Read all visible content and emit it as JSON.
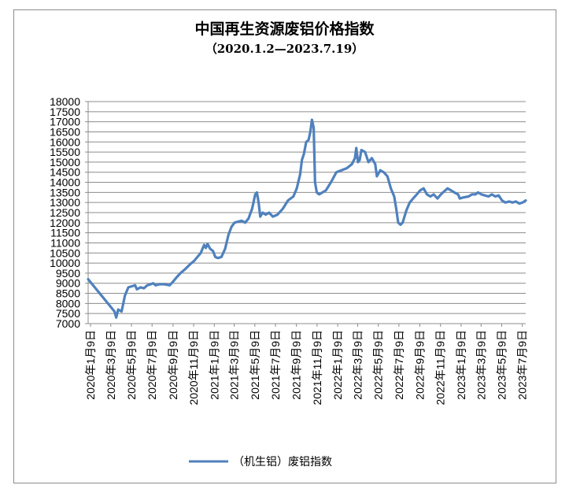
{
  "chart_data": {
    "type": "line",
    "title": "中国再生资源废铝价格指数",
    "subtitle": "（2020.1.2—2023.7.19）",
    "xlabel": "",
    "ylabel": "",
    "ylim": [
      7000,
      18000
    ],
    "ytick_step": 500,
    "grid": true,
    "legend": "bottom",
    "line_color": "#4f81bd",
    "x_tick_labels": [
      "2020年1月9日",
      "2020年3月9日",
      "2020年5月9日",
      "2020年7月9日",
      "2020年9月9日",
      "2020年11月9日",
      "2021年1月9日",
      "2021年3月9日",
      "2021年5月9日",
      "2021年7月9日",
      "2021年9月9日",
      "2021年11月9日",
      "2022年1月9日",
      "2022年3月9日",
      "2022年5月9日",
      "2022年7月9日",
      "2022年9月9日",
      "2022年11月9日",
      "2023年1月9日",
      "2023年3月9日",
      "2023年5月9日",
      "2023年7月9日"
    ],
    "series": [
      {
        "name": "（机生铝）废铝指数",
        "points": [
          [
            "2020-01-02",
            9200
          ],
          [
            "2020-03-20",
            7600
          ],
          [
            "2020-03-25",
            7300
          ],
          [
            "2020-03-31",
            7700
          ],
          [
            "2020-04-10",
            7600
          ],
          [
            "2020-04-20",
            8400
          ],
          [
            "2020-04-30",
            8800
          ],
          [
            "2020-05-10",
            8850
          ],
          [
            "2020-05-20",
            8900
          ],
          [
            "2020-05-25",
            8700
          ],
          [
            "2020-06-05",
            8800
          ],
          [
            "2020-06-15",
            8750
          ],
          [
            "2020-06-25",
            8900
          ],
          [
            "2020-07-05",
            8950
          ],
          [
            "2020-07-12",
            9000
          ],
          [
            "2020-07-20",
            8900
          ],
          [
            "2020-07-31",
            8950
          ],
          [
            "2020-08-15",
            8950
          ],
          [
            "2020-08-30",
            8900
          ],
          [
            "2020-09-10",
            9100
          ],
          [
            "2020-09-20",
            9300
          ],
          [
            "2020-10-01",
            9500
          ],
          [
            "2020-10-15",
            9700
          ],
          [
            "2020-10-30",
            9950
          ],
          [
            "2020-11-10",
            10100
          ],
          [
            "2020-11-20",
            10300
          ],
          [
            "2020-11-30",
            10500
          ],
          [
            "2020-12-05",
            10700
          ],
          [
            "2020-12-10",
            10900
          ],
          [
            "2020-12-15",
            10750
          ],
          [
            "2020-12-20",
            10950
          ],
          [
            "2020-12-28",
            10700
          ],
          [
            "2021-01-05",
            10600
          ],
          [
            "2021-01-12",
            10300
          ],
          [
            "2021-01-20",
            10250
          ],
          [
            "2021-01-30",
            10300
          ],
          [
            "2021-02-10",
            10700
          ],
          [
            "2021-02-20",
            11400
          ],
          [
            "2021-03-01",
            11800
          ],
          [
            "2021-03-10",
            12000
          ],
          [
            "2021-03-20",
            12050
          ],
          [
            "2021-03-31",
            12100
          ],
          [
            "2021-04-10",
            12000
          ],
          [
            "2021-04-20",
            12200
          ],
          [
            "2021-05-01",
            12700
          ],
          [
            "2021-05-10",
            13400
          ],
          [
            "2021-05-15",
            13500
          ],
          [
            "2021-05-20",
            13000
          ],
          [
            "2021-05-25",
            12300
          ],
          [
            "2021-06-01",
            12500
          ],
          [
            "2021-06-10",
            12400
          ],
          [
            "2021-06-20",
            12500
          ],
          [
            "2021-07-01",
            12300
          ],
          [
            "2021-07-15",
            12400
          ],
          [
            "2021-07-31",
            12700
          ],
          [
            "2021-08-15",
            13100
          ],
          [
            "2021-08-31",
            13300
          ],
          [
            "2021-09-10",
            13700
          ],
          [
            "2021-09-20",
            14400
          ],
          [
            "2021-09-25",
            15100
          ],
          [
            "2021-10-01",
            15400
          ],
          [
            "2021-10-08",
            16000
          ],
          [
            "2021-10-15",
            16100
          ],
          [
            "2021-10-20",
            16500
          ],
          [
            "2021-10-25",
            17100
          ],
          [
            "2021-10-30",
            16700
          ],
          [
            "2021-11-03",
            14000
          ],
          [
            "2021-11-08",
            13500
          ],
          [
            "2021-11-15",
            13400
          ],
          [
            "2021-11-25",
            13500
          ],
          [
            "2021-12-05",
            13600
          ],
          [
            "2021-12-20",
            14000
          ],
          [
            "2022-01-05",
            14500
          ],
          [
            "2022-01-20",
            14600
          ],
          [
            "2022-02-05",
            14700
          ],
          [
            "2022-02-20",
            14900
          ],
          [
            "2022-03-01",
            15200
          ],
          [
            "2022-03-05",
            15700
          ],
          [
            "2022-03-10",
            15000
          ],
          [
            "2022-03-15",
            15100
          ],
          [
            "2022-03-20",
            15600
          ],
          [
            "2022-03-31",
            15500
          ],
          [
            "2022-04-10",
            15000
          ],
          [
            "2022-04-20",
            15200
          ],
          [
            "2022-04-30",
            14900
          ],
          [
            "2022-05-05",
            14300
          ],
          [
            "2022-05-15",
            14600
          ],
          [
            "2022-05-25",
            14500
          ],
          [
            "2022-06-05",
            14300
          ],
          [
            "2022-06-15",
            13700
          ],
          [
            "2022-06-25",
            13300
          ],
          [
            "2022-07-01",
            12700
          ],
          [
            "2022-07-07",
            12000
          ],
          [
            "2022-07-14",
            11900
          ],
          [
            "2022-07-20",
            12000
          ],
          [
            "2022-07-31",
            12600
          ],
          [
            "2022-08-10",
            13000
          ],
          [
            "2022-08-20",
            13200
          ],
          [
            "2022-08-31",
            13400
          ],
          [
            "2022-09-10",
            13600
          ],
          [
            "2022-09-20",
            13700
          ],
          [
            "2022-09-30",
            13400
          ],
          [
            "2022-10-10",
            13300
          ],
          [
            "2022-10-20",
            13400
          ],
          [
            "2022-10-31",
            13200
          ],
          [
            "2022-11-10",
            13400
          ],
          [
            "2022-11-20",
            13550
          ],
          [
            "2022-11-30",
            13700
          ],
          [
            "2022-12-10",
            13600
          ],
          [
            "2022-12-20",
            13500
          ],
          [
            "2022-12-31",
            13400
          ],
          [
            "2023-01-05",
            13200
          ],
          [
            "2023-01-15",
            13250
          ],
          [
            "2023-01-31",
            13300
          ],
          [
            "2023-02-10",
            13400
          ],
          [
            "2023-02-20",
            13400
          ],
          [
            "2023-02-28",
            13500
          ],
          [
            "2023-03-10",
            13400
          ],
          [
            "2023-03-20",
            13350
          ],
          [
            "2023-03-31",
            13300
          ],
          [
            "2023-04-10",
            13400
          ],
          [
            "2023-04-20",
            13300
          ],
          [
            "2023-04-30",
            13350
          ],
          [
            "2023-05-10",
            13100
          ],
          [
            "2023-05-20",
            13000
          ],
          [
            "2023-05-31",
            13050
          ],
          [
            "2023-06-10",
            13000
          ],
          [
            "2023-06-20",
            13050
          ],
          [
            "2023-06-30",
            12950
          ],
          [
            "2023-07-10",
            13000
          ],
          [
            "2023-07-19",
            13100
          ]
        ]
      }
    ]
  }
}
